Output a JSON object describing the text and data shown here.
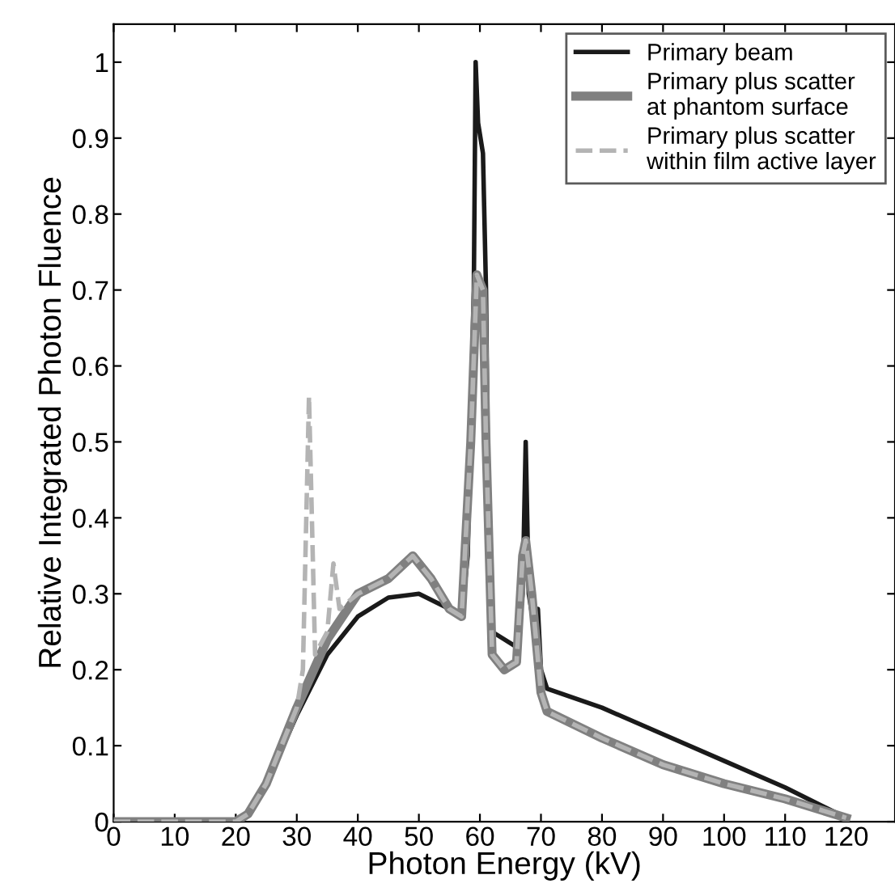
{
  "chart_data": {
    "type": "line",
    "xlabel": "Photon Energy (kV)",
    "ylabel": "Relative Integrated Photon Fluence",
    "xlim": [
      0,
      128
    ],
    "ylim": [
      0,
      1.05
    ],
    "xticks": [
      0,
      10,
      20,
      30,
      40,
      50,
      60,
      70,
      80,
      90,
      100,
      110,
      120
    ],
    "yticks": [
      0,
      0.1,
      0.2,
      0.3,
      0.4,
      0.5,
      0.6,
      0.7,
      0.8,
      0.9,
      1
    ],
    "grid": false,
    "legend": "top right",
    "marker": "none",
    "series": [
      {
        "name": "Primary beam",
        "color": "#1a1a1a",
        "line_style": "solid",
        "x": [
          0,
          10,
          20,
          22,
          25,
          30,
          35,
          40,
          45,
          50,
          55,
          57,
          58,
          59,
          59.3,
          59.7,
          60.5,
          61,
          61.5,
          62,
          66,
          67,
          67.5,
          68,
          69,
          69.5,
          70,
          71,
          80,
          90,
          100,
          110,
          120
        ],
        "values": [
          0,
          0,
          0,
          0.01,
          0.05,
          0.14,
          0.22,
          0.27,
          0.295,
          0.3,
          0.28,
          0.27,
          0.35,
          0.7,
          1.0,
          0.92,
          0.88,
          0.7,
          0.3,
          0.25,
          0.23,
          0.3,
          0.5,
          0.3,
          0.25,
          0.28,
          0.2,
          0.175,
          0.15,
          0.115,
          0.08,
          0.045,
          0.005
        ]
      },
      {
        "name": "Primary plus scatter\nat phantom surface",
        "color": "#808080",
        "line_style": "solid",
        "x": [
          0,
          10,
          20,
          22,
          25,
          30,
          35,
          40,
          45,
          49,
          52,
          55,
          57,
          58.5,
          59.5,
          60.5,
          61,
          62,
          64,
          66,
          67,
          67.5,
          68.5,
          70,
          71,
          80,
          90,
          100,
          110,
          120
        ],
        "values": [
          0,
          0,
          0,
          0.01,
          0.05,
          0.15,
          0.24,
          0.3,
          0.32,
          0.35,
          0.32,
          0.28,
          0.27,
          0.5,
          0.72,
          0.7,
          0.5,
          0.22,
          0.2,
          0.21,
          0.35,
          0.37,
          0.3,
          0.17,
          0.145,
          0.11,
          0.075,
          0.05,
          0.03,
          0.005
        ]
      },
      {
        "name": "Primary plus scatter\nwithin film active layer",
        "color": "#b4b4b4",
        "line_style": "dashed",
        "x": [
          0,
          10,
          20,
          22,
          25,
          30,
          31,
          32,
          33,
          35,
          36,
          37,
          40,
          45,
          49,
          52,
          55,
          57,
          58.5,
          59.5,
          60.5,
          61,
          62,
          64,
          66,
          67,
          67.5,
          68.5,
          70,
          71,
          80,
          90,
          100,
          110,
          120
        ],
        "values": [
          0,
          0,
          0,
          0.01,
          0.05,
          0.15,
          0.2,
          0.56,
          0.22,
          0.25,
          0.34,
          0.28,
          0.3,
          0.32,
          0.35,
          0.32,
          0.28,
          0.27,
          0.5,
          0.72,
          0.7,
          0.5,
          0.22,
          0.2,
          0.21,
          0.35,
          0.37,
          0.3,
          0.17,
          0.145,
          0.11,
          0.075,
          0.05,
          0.03,
          0.005
        ]
      }
    ]
  }
}
